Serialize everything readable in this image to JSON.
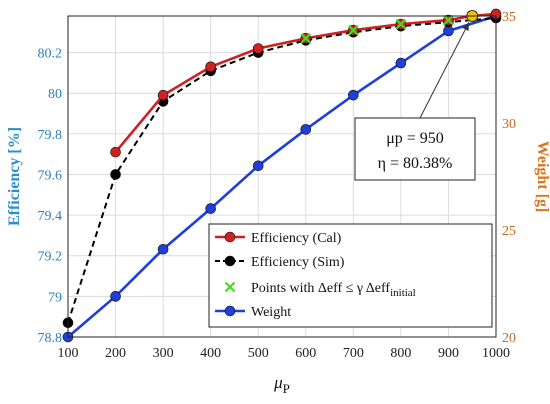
{
  "chart_data": {
    "type": "line",
    "x": [
      100,
      200,
      300,
      400,
      500,
      600,
      700,
      800,
      900,
      950,
      1000
    ],
    "xlim": [
      100,
      1000
    ],
    "xticks": [
      "100",
      "200",
      "300",
      "400",
      "500",
      "600",
      "700",
      "800",
      "900",
      "1000"
    ],
    "xlabel": "μP",
    "ylabel_left": "Efficiency [%]",
    "ylim_left": [
      78.8,
      80.38
    ],
    "yticks_left": [
      "78.8",
      "79",
      "79.2",
      "79.4",
      "79.6",
      "79.8",
      "80",
      "80.2"
    ],
    "ylabel_right": "Weight [g]",
    "ylim_right": [
      20,
      35
    ],
    "yticks_right": [
      "20",
      "25",
      "30",
      "35"
    ],
    "grid": true,
    "legend_position": "lower-right",
    "series": [
      {
        "name": "Efficiency (Cal)",
        "axis": "left",
        "color": "#cc2222",
        "style": "solid",
        "marker": "circle",
        "points": [
          [
            200,
            79.71
          ],
          [
            300,
            79.99
          ],
          [
            400,
            80.13
          ],
          [
            500,
            80.22
          ],
          [
            600,
            80.27
          ],
          [
            700,
            80.31
          ],
          [
            800,
            80.34
          ],
          [
            900,
            80.36
          ],
          [
            950,
            80.38
          ],
          [
            1000,
            80.39
          ]
        ]
      },
      {
        "name": "Efficiency (Sim)",
        "axis": "left",
        "color": "#000000",
        "style": "dashed",
        "marker": "circle",
        "points": [
          [
            100,
            78.87
          ],
          [
            200,
            79.6
          ],
          [
            300,
            79.96
          ],
          [
            400,
            80.11
          ],
          [
            500,
            80.2
          ],
          [
            600,
            80.26
          ],
          [
            700,
            80.3
          ],
          [
            800,
            80.33
          ],
          [
            900,
            80.35
          ],
          [
            1000,
            80.37
          ]
        ]
      },
      {
        "name": "Points with Δeff ≤ γ Δeff",
        "name_subscript": "initial",
        "axis": "left",
        "color": "#44dd22",
        "style": "none",
        "marker": "x",
        "points": [
          [
            600,
            80.27
          ],
          [
            700,
            80.31
          ],
          [
            800,
            80.34
          ],
          [
            900,
            80.36
          ],
          [
            950,
            80.38
          ]
        ]
      },
      {
        "name": "Weight",
        "axis": "right",
        "color": "#1f3fd8",
        "style": "solid",
        "marker": "circle",
        "points": [
          [
            100,
            20.0
          ],
          [
            200,
            21.9
          ],
          [
            300,
            24.1
          ],
          [
            400,
            26.0
          ],
          [
            500,
            28.0
          ],
          [
            600,
            29.7
          ],
          [
            700,
            31.3
          ],
          [
            800,
            32.8
          ],
          [
            900,
            34.3
          ],
          [
            1000,
            35.0
          ]
        ]
      }
    ],
    "highlight_point": {
      "x": 950,
      "y": 80.38,
      "color": "#f2c200"
    },
    "annotation": {
      "line1": "μp = 950",
      "line2": "η = 80.38%"
    }
  }
}
